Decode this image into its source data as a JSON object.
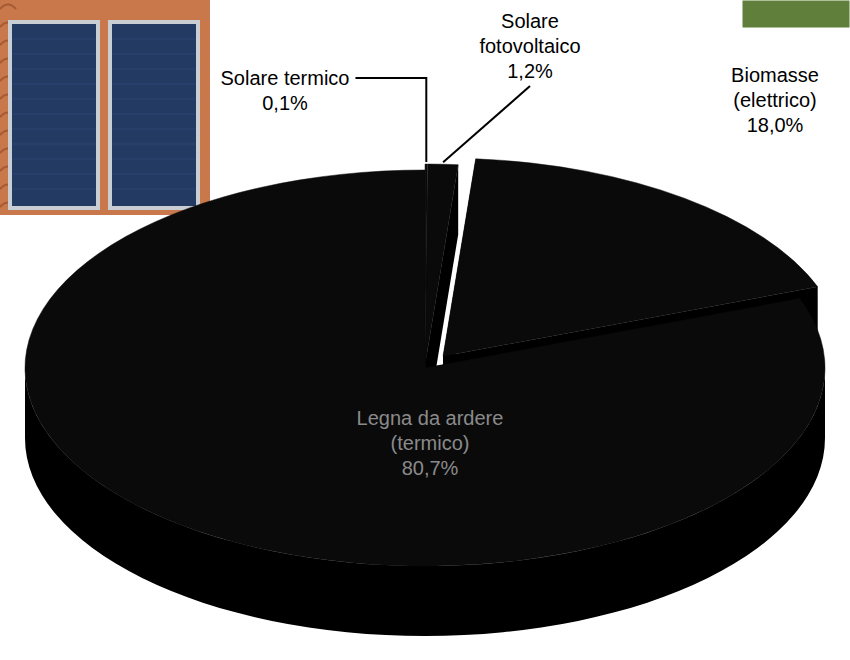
{
  "chart_data": {
    "type": "pie",
    "categories": [
      "Solare termico",
      "Solare fotovoltaico",
      "Biomasse (elettrico)",
      "Legna da ardere (termico)"
    ],
    "values": [
      0.1,
      1.2,
      18.0,
      80.7
    ],
    "value_labels": [
      "0,1%",
      "1,2%",
      "18,0%",
      "80,7%"
    ],
    "colors": [
      "#0a0a0a",
      "#0a0a0a",
      "#0a0a0a",
      "#0a0a0a"
    ],
    "data_labels": true
  }
}
